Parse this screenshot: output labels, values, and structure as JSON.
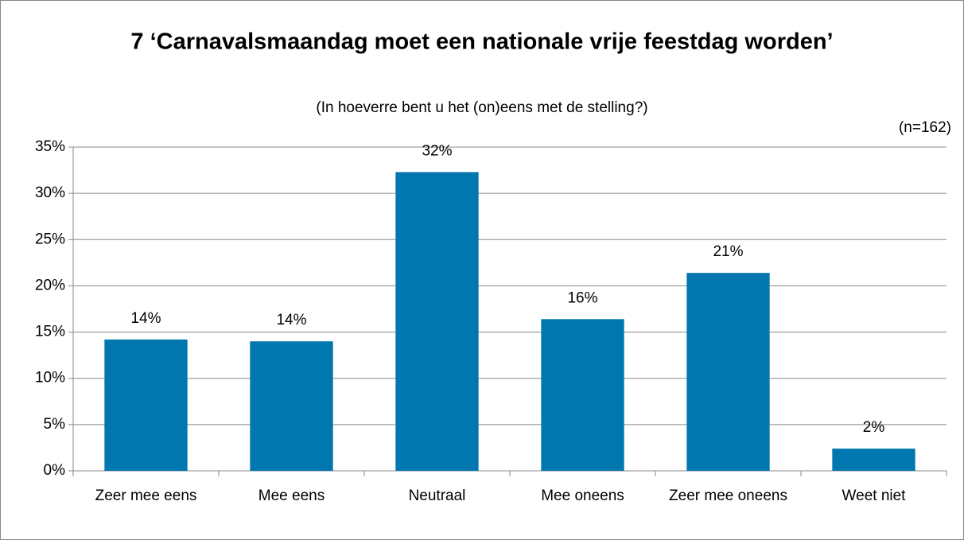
{
  "chart_data": {
    "type": "bar",
    "title": "7 ‘Carnavalsmaandag moet een nationale vrije feestdag worden’",
    "subtitle": "(In hoeverre bent u het (on)eens met de stelling?)",
    "annotation": "(n=162)",
    "categories": [
      "Zeer mee eens",
      "Mee eens",
      "Neutraal",
      "Mee oneens",
      "Zeer mee oneens",
      "Weet niet"
    ],
    "values": [
      14.2,
      14.0,
      32.3,
      16.4,
      21.4,
      2.4
    ],
    "value_labels": [
      "14%",
      "14%",
      "32%",
      "16%",
      "21%",
      "2%"
    ],
    "color": "#0077ae",
    "ylim": [
      0,
      35
    ],
    "yticks": [
      {
        "value": 0,
        "label": "0%"
      },
      {
        "value": 5,
        "label": "5%"
      },
      {
        "value": 10,
        "label": "10%"
      },
      {
        "value": 15,
        "label": "15%"
      },
      {
        "value": 20,
        "label": "20%"
      },
      {
        "value": 25,
        "label": "25%"
      },
      {
        "value": 30,
        "label": "30%"
      },
      {
        "value": 35,
        "label": "35%"
      }
    ],
    "grid": true
  }
}
